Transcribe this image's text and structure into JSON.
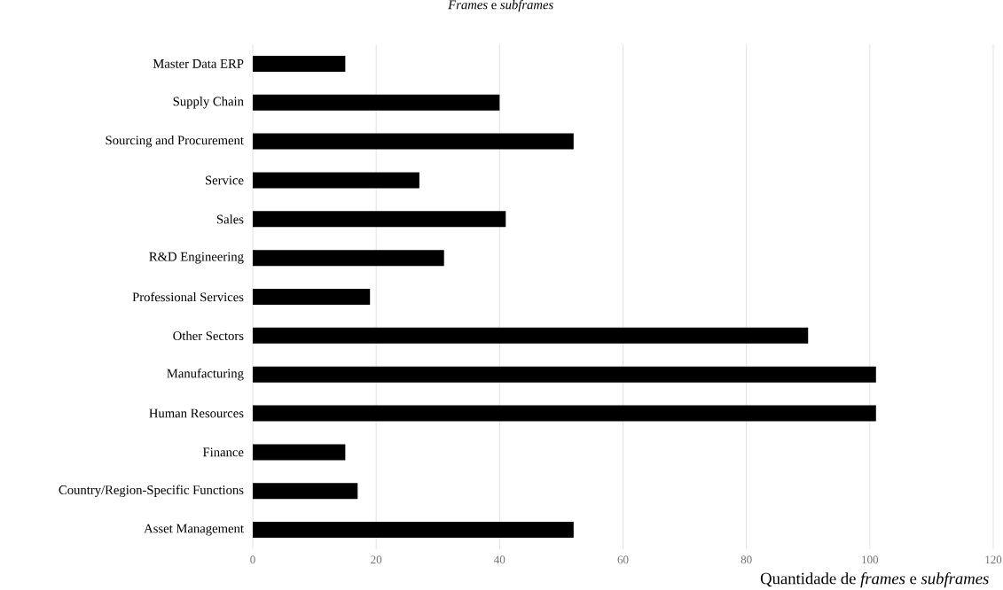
{
  "chart_data": {
    "type": "bar",
    "orientation": "horizontal",
    "title": "*Frames* e *subframes*",
    "xlabel": "Quantidade de *frames* e *subframes*",
    "categories": [
      "Master Data ERP",
      "Supply Chain",
      "Sourcing and Procurement",
      "Service",
      "Sales",
      "R&D Engineering",
      "Professional Services",
      "Other Sectors",
      "Manufacturing",
      "Human Resources",
      "Finance",
      "Country/Region-Specific Functions",
      "Asset Management"
    ],
    "values": [
      15,
      40,
      52,
      27,
      41,
      31,
      19,
      90,
      101,
      101,
      15,
      17,
      52
    ],
    "color": "#000000",
    "xlim": [
      0,
      120
    ],
    "xticks": [
      0,
      20,
      40,
      60,
      80,
      100,
      120
    ],
    "grid": "x"
  }
}
